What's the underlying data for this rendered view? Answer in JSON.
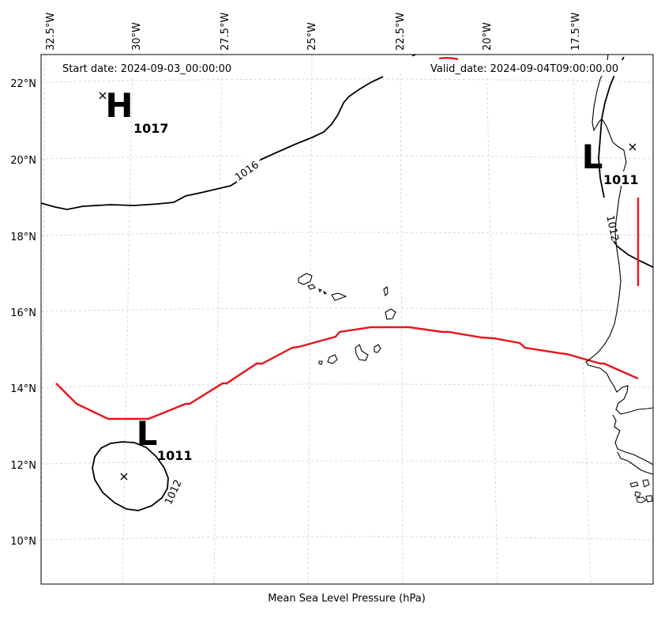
{
  "map": {
    "start_label": "Start date: 2024-09-03_00:00:00",
    "valid_label": "Valid_date: 2024-09-04T09:00:00.00",
    "xlabel": "Mean Sea Level Pressure (hPa)"
  },
  "longitude_ticks": [
    "32.5°W",
    "30°W",
    "27.5°W",
    "25°W",
    "22.5°W",
    "20°W",
    "17.5°W"
  ],
  "latitude_ticks": [
    "22°N",
    "20°N",
    "18°N",
    "16°N",
    "14°N",
    "12°N",
    "10°N"
  ],
  "pressure_centers": [
    {
      "symbol": "H",
      "value": "1017",
      "lon": -31.0,
      "lat": 21.7
    },
    {
      "symbol": "L",
      "value": "1011",
      "lon": -16.4,
      "lat": 20.4
    },
    {
      "symbol": "L",
      "value": "1011",
      "lon": -30.0,
      "lat": 11.7
    }
  ],
  "isobar_labels": [
    "1016",
    "1012",
    "1012"
  ],
  "colors": {
    "isobar": "#000000",
    "trough_line": "#e8141b",
    "grid": "#cccccc",
    "coast": "#000000"
  }
}
